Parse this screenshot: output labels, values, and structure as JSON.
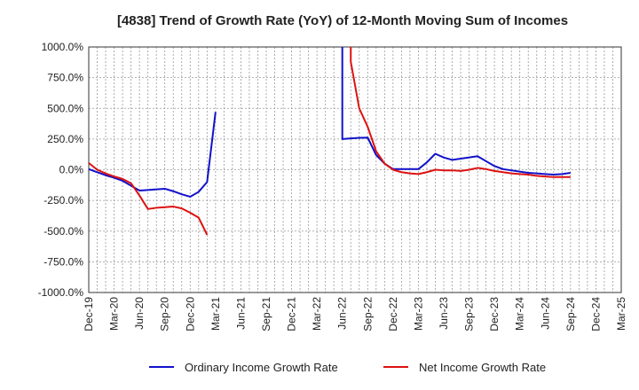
{
  "chart_data": {
    "type": "line",
    "title": "[4838]  Trend of Growth Rate (YoY) of 12-Month Moving Sum of Incomes",
    "xlabel": "",
    "ylabel": "",
    "ylim": [
      -1000,
      1000
    ],
    "y_ticks": [
      1000,
      750,
      500,
      250,
      0,
      -250,
      -500,
      -750,
      -1000
    ],
    "y_tick_labels": [
      "1000.0%",
      "750.0%",
      "500.0%",
      "250.0%",
      "0.0%",
      "-250.0%",
      "-500.0%",
      "-750.0%",
      "-1000.0%"
    ],
    "x_tick_labels": [
      "Dec-19",
      "Mar-20",
      "Jun-20",
      "Sep-20",
      "Dec-20",
      "Mar-21",
      "Jun-21",
      "Sep-21",
      "Dec-21",
      "Mar-22",
      "Jun-22",
      "Sep-22",
      "Dec-22",
      "Mar-23",
      "Jun-23",
      "Sep-23",
      "Dec-23",
      "Mar-24",
      "Jun-24",
      "Sep-24",
      "Dec-24",
      "Mar-25"
    ],
    "grid": true,
    "legend_position": "bottom",
    "series": [
      {
        "name": "Ordinary Income Growth Rate",
        "color": "#1111cc",
        "points": [
          [
            0,
            5
          ],
          [
            1,
            -20
          ],
          [
            2,
            -45
          ],
          [
            3,
            -65
          ],
          [
            4,
            -90
          ],
          [
            5,
            -130
          ],
          [
            6,
            -170
          ],
          [
            7,
            -165
          ],
          [
            8,
            -160
          ],
          [
            9,
            -155
          ],
          [
            10,
            -175
          ],
          [
            11,
            -200
          ],
          [
            12,
            -220
          ],
          [
            13,
            -180
          ],
          [
            14,
            -100
          ],
          [
            15,
            470
          ],
          null,
          [
            30,
            1000
          ],
          [
            30,
            250
          ],
          [
            31,
            255
          ],
          [
            32,
            260
          ],
          [
            33,
            262
          ],
          [
            34,
            120
          ],
          [
            35,
            50
          ],
          [
            36,
            5
          ],
          [
            37,
            5
          ],
          [
            38,
            5
          ],
          [
            39,
            5
          ],
          [
            40,
            60
          ],
          [
            41,
            130
          ],
          [
            42,
            100
          ],
          [
            43,
            80
          ],
          [
            44,
            90
          ],
          [
            45,
            100
          ],
          [
            46,
            110
          ],
          [
            47,
            70
          ],
          [
            48,
            30
          ],
          [
            49,
            5
          ],
          [
            50,
            -5
          ],
          [
            51,
            -15
          ],
          [
            52,
            -25
          ],
          [
            53,
            -30
          ],
          [
            54,
            -35
          ],
          [
            55,
            -40
          ],
          [
            56,
            -35
          ],
          [
            57,
            -25
          ]
        ]
      },
      {
        "name": "Net Income Growth Rate",
        "color": "#dd1111",
        "points": [
          [
            0,
            55
          ],
          [
            1,
            0
          ],
          [
            2,
            -30
          ],
          [
            3,
            -55
          ],
          [
            4,
            -75
          ],
          [
            5,
            -110
          ],
          [
            6,
            -210
          ],
          [
            7,
            -320
          ],
          [
            8,
            -310
          ],
          [
            9,
            -305
          ],
          [
            10,
            -300
          ],
          [
            11,
            -315
          ],
          [
            12,
            -350
          ],
          [
            13,
            -390
          ],
          [
            14,
            -530
          ],
          null,
          [
            31,
            1000
          ],
          [
            31,
            880
          ],
          [
            32,
            500
          ],
          [
            33,
            350
          ],
          [
            34,
            150
          ],
          [
            35,
            50
          ],
          [
            36,
            0
          ],
          [
            37,
            -20
          ],
          [
            38,
            -30
          ],
          [
            39,
            -35
          ],
          [
            40,
            -20
          ],
          [
            41,
            0
          ],
          [
            42,
            -5
          ],
          [
            43,
            -5
          ],
          [
            44,
            -10
          ],
          [
            45,
            0
          ],
          [
            46,
            15
          ],
          [
            47,
            5
          ],
          [
            48,
            -10
          ],
          [
            49,
            -20
          ],
          [
            50,
            -30
          ],
          [
            51,
            -35
          ],
          [
            52,
            -40
          ],
          [
            53,
            -50
          ],
          [
            54,
            -55
          ],
          [
            55,
            -60
          ],
          [
            56,
            -60
          ],
          [
            57,
            -60
          ]
        ]
      }
    ]
  }
}
